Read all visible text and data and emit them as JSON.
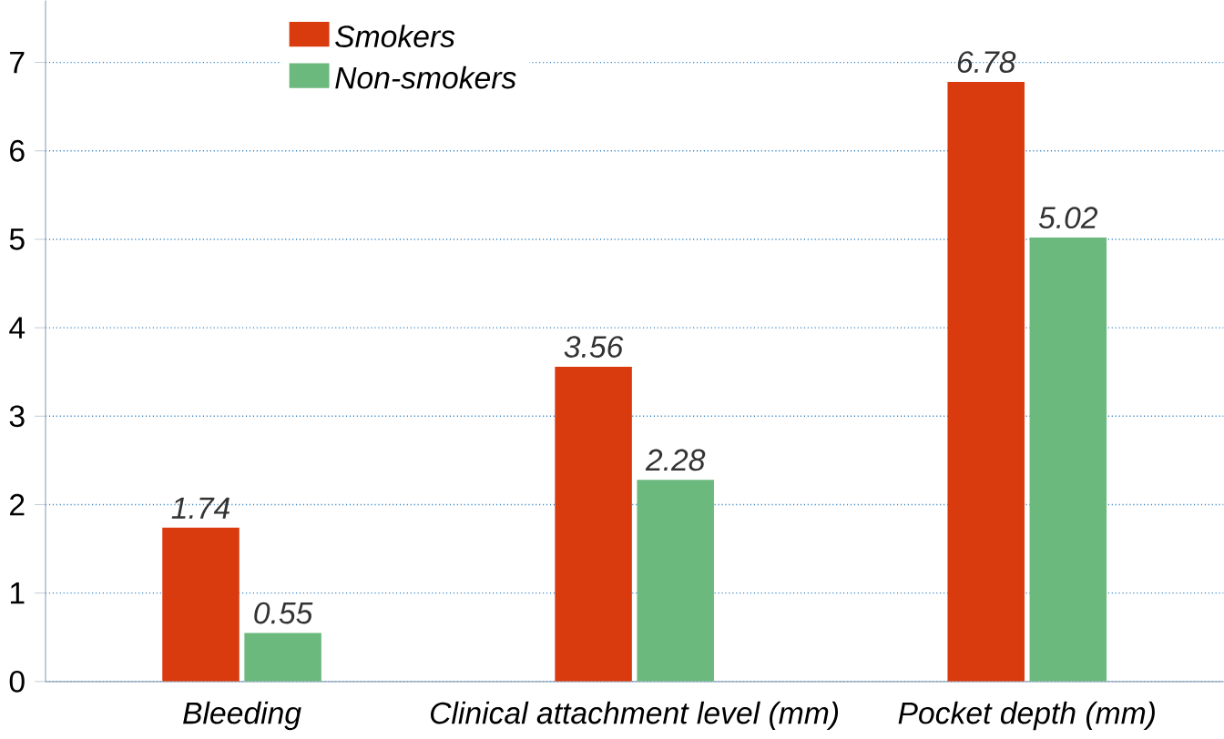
{
  "chart_data": {
    "type": "bar",
    "categories": [
      "Bleeding",
      "Clinical attachment level (mm)",
      "Pocket depth (mm)"
    ],
    "series": [
      {
        "name": "Smokers",
        "color": "#d93a0e",
        "values": [
          1.74,
          3.56,
          6.78
        ]
      },
      {
        "name": "Non-smokers",
        "color": "#6cb97e",
        "values": [
          0.55,
          2.28,
          5.02
        ]
      }
    ],
    "ylim": [
      0,
      7.7
    ],
    "yticks": [
      0,
      1,
      2,
      3,
      4,
      5,
      6,
      7
    ],
    "grid": "y",
    "legend": "top left",
    "data_labels": true
  }
}
